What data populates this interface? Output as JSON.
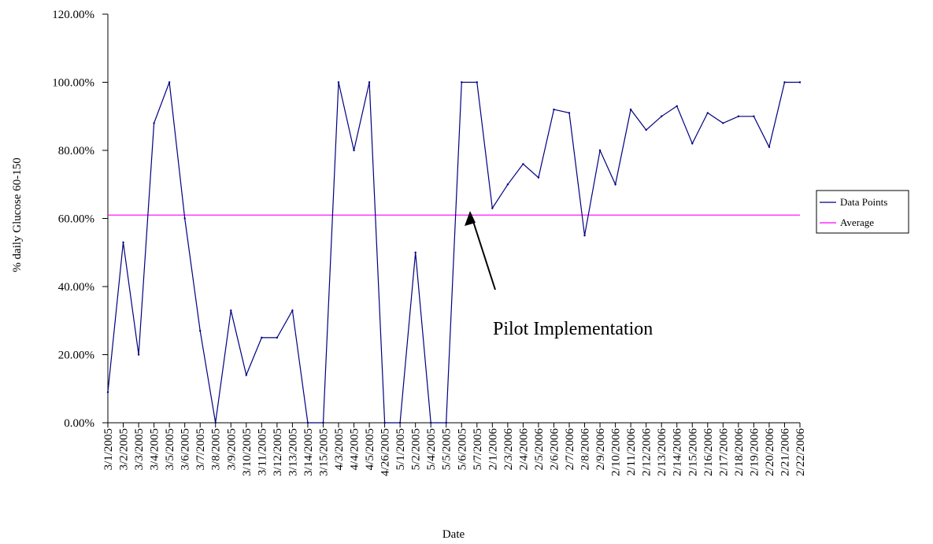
{
  "chart_data": {
    "type": "line",
    "ylabel": "% daily Glucose 60-150",
    "xlabel": "Date",
    "ylim": [
      0,
      1.2
    ],
    "y_ticks": [
      "0.00%",
      "20.00%",
      "40.00%",
      "60.00%",
      "80.00%",
      "100.00%",
      "120.00%"
    ],
    "y_tick_values": [
      0,
      0.2,
      0.4,
      0.6,
      0.8,
      1.0,
      1.2
    ],
    "categories": [
      "3/1/2005",
      "3/2/2005",
      "3/3/2005",
      "3/4/2005",
      "3/5/2005",
      "3/6/2005",
      "3/7/2005",
      "3/8/2005",
      "3/9/2005",
      "3/10/2005",
      "3/11/2005",
      "3/12/2005",
      "3/13/2005",
      "3/14/2005",
      "3/15/2005",
      "4/3/2005",
      "4/4/2005",
      "4/5/2005",
      "4/26/2005",
      "5/1/2005",
      "5/2/2005",
      "5/4/2005",
      "5/5/2005",
      "5/6/2005",
      "5/7/2005",
      "2/1/2006",
      "2/3/2006",
      "2/4/2006",
      "2/5/2006",
      "2/6/2006",
      "2/7/2006",
      "2/8/2006",
      "2/9/2006",
      "2/10/2006",
      "2/11/2006",
      "2/12/2006",
      "2/13/2006",
      "2/14/2006",
      "2/15/2006",
      "2/16/2006",
      "2/17/2006",
      "2/18/2006",
      "2/19/2006",
      "2/20/2006",
      "2/21/2006",
      "2/22/2006"
    ],
    "series": [
      {
        "name": "Data Points",
        "color": "#000080",
        "values": [
          0.09,
          0.53,
          0.2,
          0.88,
          1.0,
          0.6,
          0.27,
          0.0,
          0.33,
          0.14,
          0.25,
          0.25,
          0.33,
          0.0,
          0.0,
          1.0,
          0.8,
          1.0,
          0.0,
          0.0,
          0.5,
          0.0,
          0.0,
          1.0,
          1.0,
          0.63,
          0.7,
          0.76,
          0.72,
          0.92,
          0.91,
          0.55,
          0.8,
          0.7,
          0.92,
          0.86,
          0.9,
          0.93,
          0.82,
          0.91,
          0.88,
          0.9,
          0.9,
          0.81,
          1.0,
          1.0
        ]
      },
      {
        "name": "Average",
        "color": "#FF00FF",
        "constant": 0.61
      }
    ],
    "legend_position": "right",
    "grid": false,
    "annotation": {
      "text": "Pilot Implementation",
      "arrow_target_category": "5/7/2005",
      "arrow_target_value": 0.61
    }
  }
}
